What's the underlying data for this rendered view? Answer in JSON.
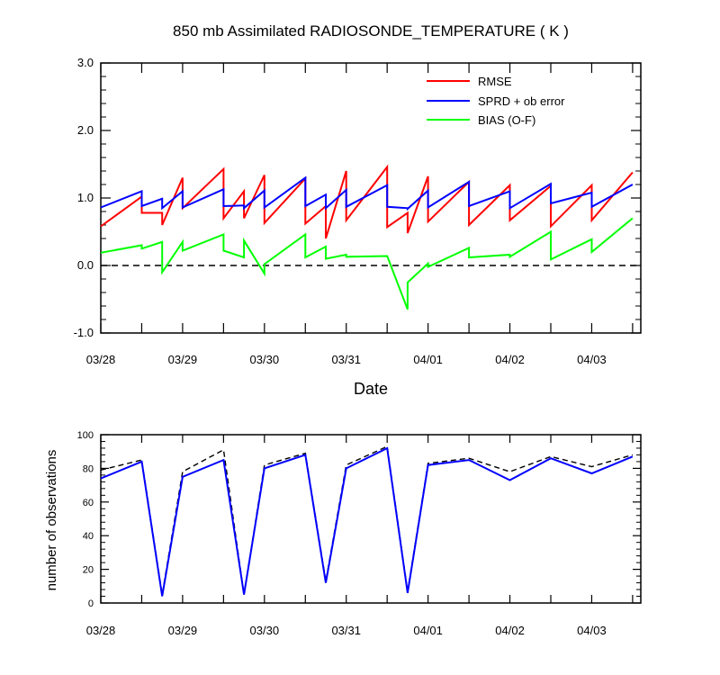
{
  "colors": {
    "rmse": "#ff0000",
    "sprd": "#0000ff",
    "bias": "#00ff00",
    "axis": "#000000",
    "zero_line": "#000000",
    "obs_assim": "#0000ff",
    "obs_total": "#000000"
  },
  "chart_data": [
    {
      "type": "line",
      "title": "850 mb Assimilated RADIOSONDE_TEMPERATURE ( K )",
      "xlabel": "Date",
      "ylabel": "",
      "x_unit": "days",
      "xlim": [
        0,
        6.6
      ],
      "ylim": [
        -1.0,
        3.0
      ],
      "grid": false,
      "legend_position": "top-right",
      "x_ticks": [
        {
          "value": 0,
          "label": "03/28"
        },
        {
          "value": 1,
          "label": "03/29"
        },
        {
          "value": 2,
          "label": "03/30"
        },
        {
          "value": 3,
          "label": "03/31"
        },
        {
          "value": 4,
          "label": "04/01"
        },
        {
          "value": 5,
          "label": "04/02"
        },
        {
          "value": 6,
          "label": "04/03"
        }
      ],
      "y_ticks": [
        {
          "value": -1.0,
          "label": "-1.0"
        },
        {
          "value": 0.0,
          "label": "0.0"
        },
        {
          "value": 1.0,
          "label": "1.0"
        },
        {
          "value": 2.0,
          "label": "2.0"
        },
        {
          "value": 3.0,
          "label": "3.0"
        }
      ],
      "reference_line": {
        "y": 0.0,
        "style": "dashed"
      },
      "series": [
        {
          "name": "RMSE",
          "color": "#ff0000",
          "points": [
            [
              0,
              0.58
            ],
            [
              0.5,
              1.02
            ],
            [
              0.5,
              0.78
            ],
            [
              0.75,
              0.78
            ],
            [
              0.75,
              0.6
            ],
            [
              1.0,
              1.3
            ],
            [
              1.0,
              0.85
            ],
            [
              1.5,
              1.43
            ],
            [
              1.5,
              0.7
            ],
            [
              1.75,
              1.1
            ],
            [
              1.75,
              0.7
            ],
            [
              2.0,
              1.34
            ],
            [
              2.0,
              0.63
            ],
            [
              2.5,
              1.29
            ],
            [
              2.5,
              0.62
            ],
            [
              2.75,
              0.88
            ],
            [
              2.75,
              0.4
            ],
            [
              3.0,
              1.4
            ],
            [
              3.0,
              0.67
            ],
            [
              3.5,
              1.46
            ],
            [
              3.5,
              0.57
            ],
            [
              3.75,
              0.78
            ],
            [
              3.75,
              0.48
            ],
            [
              4.0,
              1.32
            ],
            [
              4.0,
              0.65
            ],
            [
              4.5,
              1.24
            ],
            [
              4.5,
              0.6
            ],
            [
              5.0,
              1.19
            ],
            [
              5.0,
              0.67
            ],
            [
              5.5,
              1.18
            ],
            [
              5.5,
              0.58
            ],
            [
              6.0,
              1.19
            ],
            [
              6.0,
              0.67
            ],
            [
              6.5,
              1.38
            ]
          ]
        },
        {
          "name": "SPRD + ob error",
          "color": "#0000ff",
          "points": [
            [
              0,
              0.86
            ],
            [
              0.5,
              1.1
            ],
            [
              0.5,
              0.88
            ],
            [
              0.75,
              0.99
            ],
            [
              0.75,
              0.85
            ],
            [
              1.0,
              1.1
            ],
            [
              1.0,
              0.86
            ],
            [
              1.5,
              1.13
            ],
            [
              1.5,
              0.88
            ],
            [
              1.75,
              0.89
            ],
            [
              1.75,
              0.85
            ],
            [
              2.0,
              1.11
            ],
            [
              2.0,
              0.86
            ],
            [
              2.5,
              1.3
            ],
            [
              2.5,
              0.88
            ],
            [
              2.75,
              1.05
            ],
            [
              2.75,
              0.85
            ],
            [
              3.0,
              1.12
            ],
            [
              3.0,
              0.87
            ],
            [
              3.5,
              1.19
            ],
            [
              3.5,
              0.87
            ],
            [
              3.75,
              0.85
            ],
            [
              3.75,
              0.84
            ],
            [
              4.0,
              1.11
            ],
            [
              4.0,
              0.86
            ],
            [
              4.5,
              1.24
            ],
            [
              4.5,
              0.88
            ],
            [
              5.0,
              1.1
            ],
            [
              5.0,
              0.85
            ],
            [
              5.5,
              1.21
            ],
            [
              5.5,
              0.92
            ],
            [
              6.0,
              1.08
            ],
            [
              6.0,
              0.87
            ],
            [
              6.5,
              1.2
            ]
          ]
        },
        {
          "name": "BIAS (O-F)",
          "color": "#00ff00",
          "points": [
            [
              0,
              0.19
            ],
            [
              0.5,
              0.3
            ],
            [
              0.5,
              0.25
            ],
            [
              0.75,
              0.35
            ],
            [
              0.75,
              -0.1
            ],
            [
              1.0,
              0.35
            ],
            [
              1.0,
              0.22
            ],
            [
              1.5,
              0.46
            ],
            [
              1.5,
              0.22
            ],
            [
              1.75,
              0.12
            ],
            [
              1.75,
              0.37
            ],
            [
              2.0,
              -0.12
            ],
            [
              2.0,
              0.02
            ],
            [
              2.5,
              0.46
            ],
            [
              2.5,
              0.12
            ],
            [
              2.75,
              0.28
            ],
            [
              2.75,
              0.1
            ],
            [
              3.0,
              0.16
            ],
            [
              3.0,
              0.13
            ],
            [
              3.5,
              0.14
            ],
            [
              3.75,
              -0.65
            ],
            [
              3.75,
              -0.25
            ],
            [
              4.0,
              0.03
            ],
            [
              4.0,
              -0.02
            ],
            [
              4.5,
              0.26
            ],
            [
              4.5,
              0.12
            ],
            [
              5.0,
              0.16
            ],
            [
              5.0,
              0.13
            ],
            [
              5.5,
              0.5
            ],
            [
              5.5,
              0.09
            ],
            [
              6.0,
              0.39
            ],
            [
              6.0,
              0.2
            ],
            [
              6.5,
              0.7
            ]
          ]
        }
      ]
    },
    {
      "type": "line",
      "title": "",
      "xlabel": "",
      "ylabel": "number of observations",
      "x_unit": "days",
      "xlim": [
        0,
        6.6
      ],
      "ylim": [
        0,
        100
      ],
      "grid": false,
      "x_ticks": [
        {
          "value": 0,
          "label": "03/28"
        },
        {
          "value": 1,
          "label": "03/29"
        },
        {
          "value": 2,
          "label": "03/30"
        },
        {
          "value": 3,
          "label": "03/31"
        },
        {
          "value": 4,
          "label": "04/01"
        },
        {
          "value": 5,
          "label": "04/02"
        },
        {
          "value": 6,
          "label": "04/03"
        }
      ],
      "y_ticks": [
        {
          "value": 0,
          "label": "0"
        },
        {
          "value": 20,
          "label": "20"
        },
        {
          "value": 40,
          "label": "40"
        },
        {
          "value": 60,
          "label": "60"
        },
        {
          "value": 80,
          "label": "80"
        },
        {
          "value": 100,
          "label": "100"
        }
      ],
      "series": [
        {
          "color": "#000000",
          "style": "dashed",
          "x": [
            0,
            0.5,
            0.75,
            1.0,
            1.5,
            1.75,
            2.0,
            2.5,
            2.75,
            3.0,
            3.5,
            3.75,
            4.0,
            4.5,
            5.0,
            5.5,
            6.0,
            6.5
          ],
          "values": [
            79,
            85,
            5,
            78,
            91,
            5,
            82,
            89,
            13,
            82,
            93,
            7,
            83,
            86,
            78,
            87,
            81,
            88
          ]
        },
        {
          "color": "#0000ff",
          "style": "solid",
          "x": [
            0,
            0.5,
            0.75,
            1.0,
            1.5,
            1.75,
            2.0,
            2.5,
            2.75,
            3.0,
            3.5,
            3.75,
            4.0,
            4.5,
            5.0,
            5.5,
            6.0,
            6.5
          ],
          "values": [
            74,
            84,
            4,
            75,
            85,
            5,
            80,
            88,
            12,
            80,
            92,
            6,
            82,
            85,
            73,
            86,
            77,
            87
          ]
        }
      ]
    }
  ]
}
